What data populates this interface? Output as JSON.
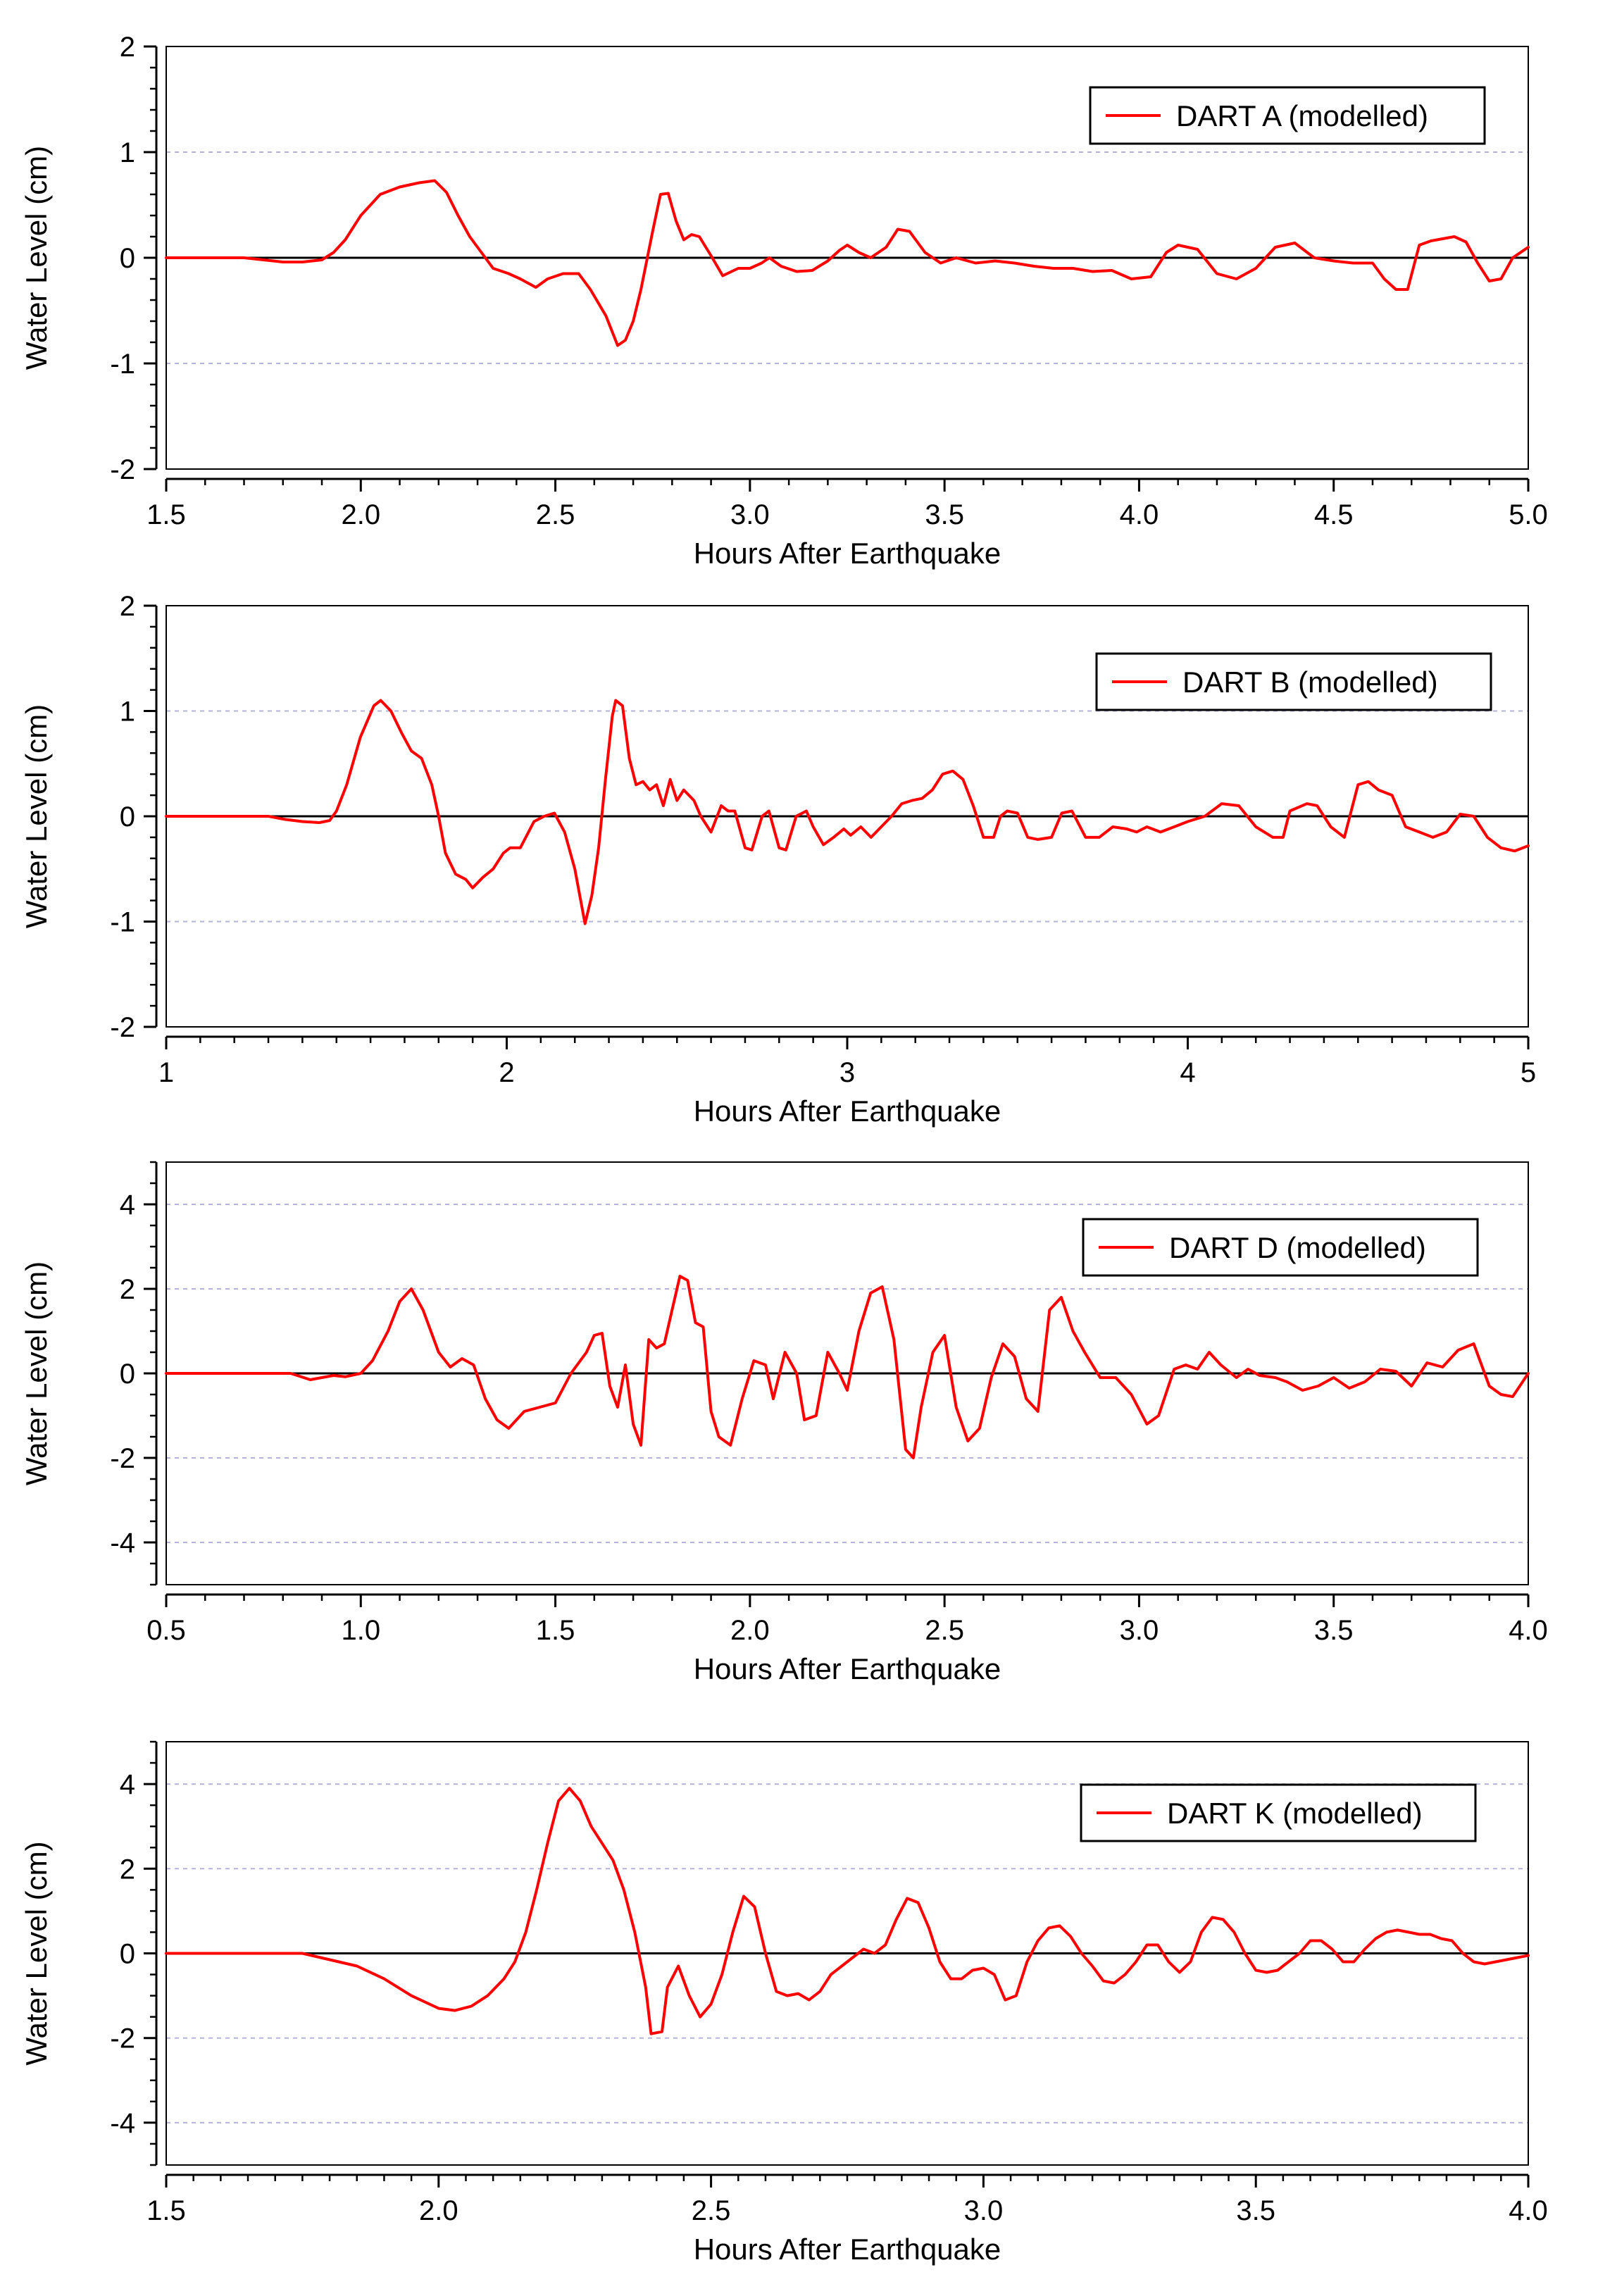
{
  "figure": {
    "colors": {
      "series": "#ff0000",
      "axis": "#000000",
      "grid": "#b3b3d9",
      "zero_line": "#000000",
      "background": "#ffffff"
    }
  },
  "chart_data": [
    {
      "type": "line",
      "title": "",
      "xlabel": "Hours After Earthquake",
      "ylabel": "Water Level (cm)",
      "xlim": [
        1.5,
        5.0
      ],
      "ylim": [
        -2,
        2
      ],
      "xticks": [
        1.5,
        2.0,
        2.5,
        3.0,
        3.5,
        4.0,
        4.5,
        5.0
      ],
      "xtick_labels": [
        "1.5",
        "2.0",
        "2.5",
        "3.0",
        "3.5",
        "4.0",
        "4.5",
        "5.0"
      ],
      "yticks": [
        -2,
        -1,
        0,
        1,
        2
      ],
      "ytick_labels": [
        "-2",
        "-1",
        "0",
        "1",
        "2"
      ],
      "x_minor_step": 0.1,
      "y_minor_step": 0.2,
      "grid": "horizontal dashed",
      "legend_position": "top-right",
      "series": [
        {
          "name": "DART A (modelled)",
          "x": [
            1.5,
            1.7,
            1.75,
            1.8,
            1.85,
            1.9,
            1.93,
            1.96,
            2.0,
            2.05,
            2.1,
            2.15,
            2.19,
            2.22,
            2.25,
            2.28,
            2.31,
            2.34,
            2.38,
            2.41,
            2.45,
            2.48,
            2.52,
            2.56,
            2.59,
            2.63,
            2.66,
            2.68,
            2.7,
            2.72,
            2.75,
            2.77,
            2.79,
            2.81,
            2.83,
            2.85,
            2.87,
            2.9,
            2.93,
            2.97,
            3.0,
            3.03,
            3.05,
            3.08,
            3.12,
            3.16,
            3.2,
            3.23,
            3.25,
            3.28,
            3.31,
            3.35,
            3.38,
            3.41,
            3.45,
            3.49,
            3.53,
            3.58,
            3.63,
            3.68,
            3.73,
            3.78,
            3.83,
            3.88,
            3.93,
            3.98,
            4.03,
            4.07,
            4.1,
            4.15,
            4.2,
            4.25,
            4.3,
            4.35,
            4.4,
            4.45,
            4.5,
            4.55,
            4.6,
            4.63,
            4.66,
            4.69,
            4.72,
            4.75,
            4.78,
            4.81,
            4.84,
            4.87,
            4.9,
            4.93,
            4.96,
            5.0
          ],
          "y": [
            0.0,
            0.0,
            -0.02,
            -0.04,
            -0.04,
            -0.02,
            0.05,
            0.17,
            0.4,
            0.6,
            0.67,
            0.71,
            0.73,
            0.62,
            0.4,
            0.2,
            0.05,
            -0.1,
            -0.15,
            -0.2,
            -0.28,
            -0.2,
            -0.15,
            -0.15,
            -0.3,
            -0.55,
            -0.83,
            -0.78,
            -0.6,
            -0.3,
            0.25,
            0.6,
            0.61,
            0.35,
            0.17,
            0.22,
            0.2,
            0.02,
            -0.17,
            -0.1,
            -0.1,
            -0.05,
            0.0,
            -0.08,
            -0.13,
            -0.12,
            -0.03,
            0.07,
            0.12,
            0.05,
            0.0,
            0.1,
            0.27,
            0.25,
            0.05,
            -0.05,
            0.0,
            -0.05,
            -0.03,
            -0.05,
            -0.08,
            -0.1,
            -0.1,
            -0.13,
            -0.12,
            -0.2,
            -0.18,
            0.05,
            0.12,
            0.08,
            -0.15,
            -0.2,
            -0.1,
            0.1,
            0.14,
            0.0,
            -0.03,
            -0.05,
            -0.05,
            -0.2,
            -0.3,
            -0.3,
            0.12,
            0.16,
            0.18,
            0.2,
            0.15,
            -0.05,
            -0.22,
            -0.2,
            0.0,
            0.1
          ]
        }
      ]
    },
    {
      "type": "line",
      "title": "",
      "xlabel": "Hours After Earthquake",
      "ylabel": "Water Level (cm)",
      "xlim": [
        1,
        5
      ],
      "ylim": [
        -2,
        2
      ],
      "xticks": [
        1,
        2,
        3,
        4,
        5
      ],
      "xtick_labels": [
        "1",
        "2",
        "3",
        "4",
        "5"
      ],
      "yticks": [
        -2,
        -1,
        0,
        1,
        2
      ],
      "ytick_labels": [
        "-2",
        "-1",
        "0",
        "1",
        "2"
      ],
      "x_minor_step": 0.1,
      "y_minor_step": 0.2,
      "grid": "horizontal dashed",
      "legend_position": "top-right",
      "series": [
        {
          "name": "DART B (modelled)",
          "x": [
            1.0,
            1.3,
            1.35,
            1.4,
            1.45,
            1.48,
            1.5,
            1.53,
            1.57,
            1.61,
            1.63,
            1.66,
            1.69,
            1.72,
            1.75,
            1.78,
            1.8,
            1.82,
            1.85,
            1.88,
            1.9,
            1.93,
            1.96,
            1.99,
            2.01,
            2.04,
            2.08,
            2.11,
            2.14,
            2.17,
            2.2,
            2.23,
            2.25,
            2.27,
            2.29,
            2.31,
            2.32,
            2.34,
            2.36,
            2.38,
            2.4,
            2.42,
            2.44,
            2.46,
            2.48,
            2.5,
            2.52,
            2.55,
            2.57,
            2.6,
            2.63,
            2.65,
            2.67,
            2.7,
            2.72,
            2.75,
            2.77,
            2.8,
            2.82,
            2.85,
            2.88,
            2.9,
            2.93,
            2.96,
            2.99,
            3.01,
            3.04,
            3.07,
            3.1,
            3.13,
            3.16,
            3.19,
            3.22,
            3.25,
            3.28,
            3.31,
            3.34,
            3.37,
            3.4,
            3.43,
            3.45,
            3.47,
            3.5,
            3.53,
            3.56,
            3.6,
            3.63,
            3.66,
            3.7,
            3.74,
            3.78,
            3.82,
            3.85,
            3.88,
            3.92,
            3.96,
            4.0,
            4.05,
            4.1,
            4.15,
            4.2,
            4.25,
            4.28,
            4.3,
            4.35,
            4.38,
            4.42,
            4.46,
            4.5,
            4.53,
            4.56,
            4.6,
            4.64,
            4.68,
            4.72,
            4.76,
            4.8,
            4.84,
            4.88,
            4.92,
            4.96,
            5.0
          ],
          "y": [
            0.0,
            0.0,
            -0.03,
            -0.05,
            -0.06,
            -0.04,
            0.05,
            0.3,
            0.75,
            1.05,
            1.1,
            1.0,
            0.8,
            0.62,
            0.55,
            0.3,
            0.0,
            -0.35,
            -0.55,
            -0.6,
            -0.68,
            -0.58,
            -0.5,
            -0.35,
            -0.3,
            -0.3,
            -0.05,
            0.0,
            0.03,
            -0.15,
            -0.5,
            -1.02,
            -0.75,
            -0.3,
            0.35,
            0.95,
            1.1,
            1.05,
            0.55,
            0.3,
            0.33,
            0.25,
            0.3,
            0.1,
            0.35,
            0.15,
            0.25,
            0.15,
            0.0,
            -0.15,
            0.1,
            0.05,
            0.05,
            -0.3,
            -0.32,
            0.0,
            0.05,
            -0.3,
            -0.32,
            0.0,
            0.05,
            -0.1,
            -0.27,
            -0.2,
            -0.12,
            -0.18,
            -0.1,
            -0.2,
            -0.1,
            0.0,
            0.12,
            0.15,
            0.17,
            0.25,
            0.4,
            0.43,
            0.35,
            0.1,
            -0.2,
            -0.2,
            0.0,
            0.05,
            0.03,
            -0.2,
            -0.22,
            -0.2,
            0.03,
            0.05,
            -0.2,
            -0.2,
            -0.1,
            -0.12,
            -0.15,
            -0.1,
            -0.15,
            -0.1,
            -0.05,
            0.0,
            0.12,
            0.1,
            -0.1,
            -0.2,
            -0.2,
            0.05,
            0.12,
            0.1,
            -0.1,
            -0.2,
            0.3,
            0.33,
            0.25,
            0.2,
            -0.1,
            -0.15,
            -0.2,
            -0.15,
            0.02,
            0.0,
            -0.2,
            -0.3,
            -0.33,
            -0.28
          ]
        }
      ]
    },
    {
      "type": "line",
      "title": "",
      "xlabel": "Hours After Earthquake",
      "ylabel": "Water Level (cm)",
      "xlim": [
        0.5,
        4.0
      ],
      "ylim": [
        -5,
        5
      ],
      "xticks": [
        0.5,
        1.0,
        1.5,
        2.0,
        2.5,
        3.0,
        3.5,
        4.0
      ],
      "xtick_labels": [
        "0.5",
        "1.0",
        "1.5",
        "2.0",
        "2.5",
        "3.0",
        "3.5",
        "4.0"
      ],
      "yticks": [
        -4,
        -2,
        0,
        2,
        4
      ],
      "ytick_labels": [
        "-4",
        "-2",
        "0",
        "2",
        "4"
      ],
      "x_minor_step": 0.1,
      "y_minor_step": 0.5,
      "grid": "horizontal dashed",
      "legend_position": "top-right",
      "series": [
        {
          "name": "DART D (modelled)",
          "x": [
            0.5,
            0.82,
            0.87,
            0.9,
            0.93,
            0.96,
            1.0,
            1.03,
            1.07,
            1.1,
            1.13,
            1.16,
            1.2,
            1.23,
            1.26,
            1.29,
            1.32,
            1.35,
            1.38,
            1.42,
            1.46,
            1.5,
            1.54,
            1.58,
            1.6,
            1.62,
            1.64,
            1.66,
            1.68,
            1.7,
            1.72,
            1.74,
            1.76,
            1.78,
            1.8,
            1.82,
            1.84,
            1.86,
            1.88,
            1.9,
            1.92,
            1.95,
            1.98,
            2.01,
            2.04,
            2.06,
            2.09,
            2.12,
            2.14,
            2.17,
            2.2,
            2.23,
            2.25,
            2.28,
            2.31,
            2.34,
            2.37,
            2.4,
            2.42,
            2.44,
            2.47,
            2.5,
            2.53,
            2.56,
            2.59,
            2.62,
            2.65,
            2.68,
            2.71,
            2.74,
            2.77,
            2.8,
            2.83,
            2.86,
            2.9,
            2.94,
            2.98,
            3.02,
            3.05,
            3.09,
            3.12,
            3.15,
            3.18,
            3.21,
            3.25,
            3.28,
            3.31,
            3.35,
            3.38,
            3.42,
            3.46,
            3.5,
            3.54,
            3.58,
            3.62,
            3.66,
            3.7,
            3.74,
            3.78,
            3.82,
            3.86,
            3.9,
            3.93,
            3.96,
            4.0
          ],
          "y": [
            0.0,
            0.0,
            -0.15,
            -0.1,
            -0.05,
            -0.08,
            0.0,
            0.3,
            1.0,
            1.7,
            2.0,
            1.5,
            0.5,
            0.15,
            0.35,
            0.2,
            -0.6,
            -1.1,
            -1.3,
            -0.9,
            -0.8,
            -0.7,
            0.0,
            0.5,
            0.9,
            0.95,
            -0.3,
            -0.8,
            0.2,
            -1.2,
            -1.7,
            0.8,
            0.6,
            0.7,
            1.5,
            2.3,
            2.2,
            1.2,
            1.1,
            -0.9,
            -1.5,
            -1.7,
            -0.6,
            0.3,
            0.2,
            -0.6,
            0.5,
            0.0,
            -1.1,
            -1.0,
            0.5,
            0.0,
            -0.4,
            1.0,
            1.9,
            2.05,
            0.8,
            -1.8,
            -2.0,
            -0.8,
            0.5,
            0.9,
            -0.8,
            -1.6,
            -1.3,
            -0.1,
            0.7,
            0.4,
            -0.6,
            -0.9,
            1.5,
            1.8,
            1.0,
            0.5,
            -0.1,
            -0.1,
            -0.5,
            -1.2,
            -1.0,
            0.1,
            0.2,
            0.1,
            0.5,
            0.2,
            -0.1,
            0.1,
            -0.05,
            -0.1,
            -0.2,
            -0.4,
            -0.3,
            -0.1,
            -0.35,
            -0.2,
            0.1,
            0.05,
            -0.3,
            0.25,
            0.15,
            0.55,
            0.7,
            -0.3,
            -0.5,
            -0.55,
            0.0
          ]
        }
      ]
    },
    {
      "type": "line",
      "title": "",
      "xlabel": "Hours After Earthquake",
      "ylabel": "Water Level (cm)",
      "xlim": [
        1.5,
        4.0
      ],
      "ylim": [
        -5,
        5
      ],
      "xticks": [
        1.5,
        2.0,
        2.5,
        3.0,
        3.5,
        4.0
      ],
      "xtick_labels": [
        "1.5",
        "2.0",
        "2.5",
        "3.0",
        "3.5",
        "4.0"
      ],
      "yticks": [
        -4,
        -2,
        0,
        2,
        4
      ],
      "ytick_labels": [
        "-4",
        "-2",
        "0",
        "2",
        "4"
      ],
      "x_minor_step": 0.05,
      "y_minor_step": 0.5,
      "grid": "horizontal dashed",
      "legend_position": "top-right",
      "series": [
        {
          "name": "DART K (modelled)",
          "x": [
            1.5,
            1.75,
            1.8,
            1.85,
            1.9,
            1.95,
            2.0,
            2.03,
            2.06,
            2.09,
            2.12,
            2.14,
            2.16,
            2.18,
            2.2,
            2.22,
            2.24,
            2.26,
            2.28,
            2.3,
            2.32,
            2.34,
            2.36,
            2.38,
            2.39,
            2.41,
            2.42,
            2.44,
            2.46,
            2.48,
            2.5,
            2.52,
            2.54,
            2.56,
            2.58,
            2.6,
            2.62,
            2.64,
            2.66,
            2.68,
            2.7,
            2.72,
            2.74,
            2.76,
            2.78,
            2.8,
            2.82,
            2.84,
            2.86,
            2.88,
            2.9,
            2.92,
            2.94,
            2.96,
            2.98,
            3.0,
            3.02,
            3.04,
            3.06,
            3.08,
            3.1,
            3.12,
            3.14,
            3.16,
            3.18,
            3.2,
            3.22,
            3.24,
            3.26,
            3.28,
            3.3,
            3.32,
            3.34,
            3.36,
            3.38,
            3.4,
            3.42,
            3.44,
            3.46,
            3.48,
            3.5,
            3.52,
            3.54,
            3.56,
            3.58,
            3.6,
            3.62,
            3.64,
            3.66,
            3.68,
            3.7,
            3.72,
            3.74,
            3.76,
            3.78,
            3.8,
            3.82,
            3.84,
            3.86,
            3.88,
            3.9,
            3.92,
            3.94,
            3.96,
            3.98,
            4.0
          ],
          "y": [
            0.0,
            0.0,
            -0.15,
            -0.3,
            -0.6,
            -1.0,
            -1.3,
            -1.35,
            -1.25,
            -1.0,
            -0.6,
            -0.2,
            0.5,
            1.5,
            2.6,
            3.6,
            3.9,
            3.6,
            3.0,
            2.6,
            2.2,
            1.5,
            0.5,
            -0.8,
            -1.9,
            -1.85,
            -0.8,
            -0.3,
            -1.0,
            -1.5,
            -1.2,
            -0.5,
            0.5,
            1.35,
            1.1,
            0.0,
            -0.9,
            -1.0,
            -0.95,
            -1.1,
            -0.9,
            -0.5,
            -0.3,
            -0.1,
            0.1,
            0.0,
            0.2,
            0.8,
            1.3,
            1.2,
            0.6,
            -0.2,
            -0.6,
            -0.6,
            -0.4,
            -0.35,
            -0.5,
            -1.1,
            -1.0,
            -0.2,
            0.3,
            0.6,
            0.65,
            0.4,
            0.0,
            -0.3,
            -0.65,
            -0.7,
            -0.5,
            -0.2,
            0.2,
            0.2,
            -0.2,
            -0.45,
            -0.2,
            0.5,
            0.85,
            0.8,
            0.5,
            0.0,
            -0.4,
            -0.45,
            -0.4,
            -0.2,
            0.0,
            0.3,
            0.3,
            0.1,
            -0.2,
            -0.2,
            0.1,
            0.35,
            0.5,
            0.55,
            0.5,
            0.45,
            0.45,
            0.35,
            0.3,
            0.0,
            -0.2,
            -0.25,
            -0.2,
            -0.15,
            -0.1,
            -0.05
          ]
        }
      ]
    }
  ]
}
